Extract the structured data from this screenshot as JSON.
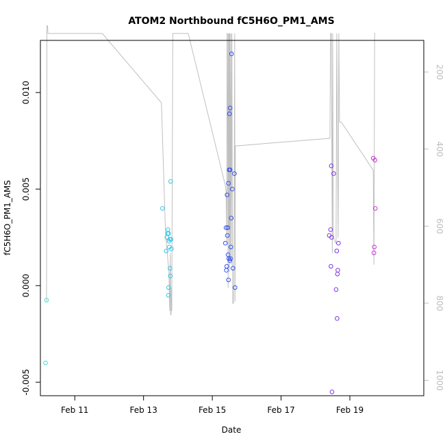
{
  "chart_data": {
    "type": "scatter",
    "title": "ATOM2 Northbound fC5H6O_PM1_AMS",
    "xlabel": "Date",
    "ylabel": "fC5H6O_PM1_AMS",
    "xlim": [
      10.0,
      21.15
    ],
    "ylim": [
      -0.0057,
      0.0127
    ],
    "x_ticks": [
      {
        "value": 11,
        "label": "Feb 11"
      },
      {
        "value": 13,
        "label": "Feb 13"
      },
      {
        "value": 15,
        "label": "Feb 15"
      },
      {
        "value": 17,
        "label": "Feb 17"
      },
      {
        "value": 19,
        "label": "Feb 19"
      }
    ],
    "y_ticks": [
      {
        "value": -0.005,
        "label": "-0.005"
      },
      {
        "value": 0.0,
        "label": "0.000"
      },
      {
        "value": 0.005,
        "label": "0.005"
      },
      {
        "value": 0.01,
        "label": "0.010"
      }
    ],
    "secondary_axis": {
      "label": "",
      "lim": [
        118,
        1040
      ],
      "color": "#bdbdbd",
      "ticks": [
        {
          "value": 200,
          "label": "200"
        },
        {
          "value": 400,
          "label": "400"
        },
        {
          "value": 600,
          "label": "600"
        },
        {
          "value": 800,
          "label": "800"
        },
        {
          "value": 1000,
          "label": "1000"
        }
      ]
    },
    "points": [
      {
        "x": 10.18,
        "y": -0.00075,
        "color": "#40e0d0"
      },
      {
        "x": 10.15,
        "y": -0.004,
        "color": "#40e0d0"
      },
      {
        "x": 13.55,
        "y": 0.004,
        "color": "#33c3e6"
      },
      {
        "x": 13.66,
        "y": 0.0018,
        "color": "#33c3e6"
      },
      {
        "x": 13.68,
        "y": 0.0025,
        "color": "#33c3e6"
      },
      {
        "x": 13.7,
        "y": 0.0027,
        "color": "#33c3e6"
      },
      {
        "x": 13.71,
        "y": 0.0029,
        "color": "#33c3e6"
      },
      {
        "x": 13.72,
        "y": -0.0005,
        "color": "#33c3e6"
      },
      {
        "x": 13.73,
        "y": 0.0027,
        "color": "#33c3e6"
      },
      {
        "x": 13.74,
        "y": 0.0023,
        "color": "#33c3e6"
      },
      {
        "x": 13.75,
        "y": 0.002,
        "color": "#33c3e6"
      },
      {
        "x": 13.76,
        "y": 0.0024,
        "color": "#33c3e6"
      },
      {
        "x": 13.77,
        "y": 0.0009,
        "color": "#33c3e6"
      },
      {
        "x": 13.78,
        "y": 0.0005,
        "color": "#33c3e6"
      },
      {
        "x": 13.79,
        "y": 0.0054,
        "color": "#33c3e6"
      },
      {
        "x": 13.8,
        "y": 0.0024,
        "color": "#33c3e6"
      },
      {
        "x": 13.81,
        "y": 0.0019,
        "color": "#33c3e6"
      },
      {
        "x": 13.73,
        "y": -0.0001,
        "color": "#33c3e6"
      },
      {
        "x": 15.38,
        "y": 0.0022,
        "color": "#3050ee"
      },
      {
        "x": 15.4,
        "y": 0.003,
        "color": "#3050ee"
      },
      {
        "x": 15.41,
        "y": 0.0008,
        "color": "#3050ee"
      },
      {
        "x": 15.42,
        "y": 0.001,
        "color": "#3050ee"
      },
      {
        "x": 15.43,
        "y": 0.0047,
        "color": "#3050ee"
      },
      {
        "x": 15.44,
        "y": 0.0026,
        "color": "#3050ee"
      },
      {
        "x": 15.45,
        "y": 0.003,
        "color": "#3050ee"
      },
      {
        "x": 15.46,
        "y": 0.0016,
        "color": "#3050ee"
      },
      {
        "x": 15.47,
        "y": 0.0053,
        "color": "#3050ee"
      },
      {
        "x": 15.47,
        "y": 0.0003,
        "color": "#3050ee"
      },
      {
        "x": 15.48,
        "y": 0.0014,
        "color": "#3050ee"
      },
      {
        "x": 15.49,
        "y": 0.006,
        "color": "#3050ee"
      },
      {
        "x": 15.5,
        "y": 0.0089,
        "color": "#3050ee"
      },
      {
        "x": 15.51,
        "y": 0.0013,
        "color": "#3050ee"
      },
      {
        "x": 15.52,
        "y": 0.006,
        "color": "#3050ee"
      },
      {
        "x": 15.52,
        "y": 0.0092,
        "color": "#3050ee"
      },
      {
        "x": 15.53,
        "y": 0.0014,
        "color": "#3050ee"
      },
      {
        "x": 15.54,
        "y": 0.002,
        "color": "#3050ee"
      },
      {
        "x": 15.55,
        "y": 0.0035,
        "color": "#3050ee"
      },
      {
        "x": 15.56,
        "y": 0.012,
        "color": "#3050ee"
      },
      {
        "x": 15.58,
        "y": 0.005,
        "color": "#3050ee"
      },
      {
        "x": 15.6,
        "y": 0.0009,
        "color": "#3050ee"
      },
      {
        "x": 15.64,
        "y": 0.0058,
        "color": "#3050ee"
      },
      {
        "x": 15.66,
        "y": -0.0001,
        "color": "#3050ee"
      },
      {
        "x": 18.4,
        "y": 0.0026,
        "color": "#7a34e6"
      },
      {
        "x": 18.44,
        "y": 0.0029,
        "color": "#7a34e6"
      },
      {
        "x": 18.45,
        "y": 0.001,
        "color": "#7a34e6"
      },
      {
        "x": 18.46,
        "y": 0.0062,
        "color": "#7a34e6"
      },
      {
        "x": 18.47,
        "y": 0.0025,
        "color": "#7a34e6"
      },
      {
        "x": 18.48,
        "y": -0.0055,
        "color": "#7a34e6"
      },
      {
        "x": 18.53,
        "y": 0.0058,
        "color": "#7a34e6"
      },
      {
        "x": 18.6,
        "y": -0.0002,
        "color": "#7a34e6"
      },
      {
        "x": 18.62,
        "y": 0.0018,
        "color": "#7a34e6"
      },
      {
        "x": 18.63,
        "y": -0.0017,
        "color": "#7a34e6"
      },
      {
        "x": 18.64,
        "y": 0.0006,
        "color": "#7a34e6"
      },
      {
        "x": 18.65,
        "y": 0.0008,
        "color": "#7a34e6"
      },
      {
        "x": 18.67,
        "y": 0.0022,
        "color": "#7a34e6"
      },
      {
        "x": 19.68,
        "y": 0.0066,
        "color": "#c534d6"
      },
      {
        "x": 19.7,
        "y": 0.0017,
        "color": "#c534d6"
      },
      {
        "x": 19.71,
        "y": 0.002,
        "color": "#c534d6"
      },
      {
        "x": 19.73,
        "y": 0.0065,
        "color": "#c534d6"
      },
      {
        "x": 19.74,
        "y": 0.004,
        "color": "#c534d6"
      }
    ],
    "line_series": {
      "name": "secondary",
      "color": "#bfbfbf",
      "x": [
        10.18,
        10.19,
        10.21,
        10.22,
        11.8,
        13.52,
        13.64,
        13.74,
        13.76,
        13.78,
        13.79,
        13.8,
        13.81,
        13.82,
        13.85,
        14.3,
        15.38,
        15.4,
        15.42,
        15.43,
        15.44,
        15.46,
        15.47,
        15.48,
        15.49,
        15.5,
        15.51,
        15.52,
        15.54,
        15.55,
        15.57,
        15.59,
        15.62,
        15.63,
        15.65,
        15.66,
        15.67,
        18.42,
        18.44,
        18.46,
        18.49,
        18.5,
        18.52,
        18.6,
        18.62,
        18.66,
        18.68,
        18.7,
        18.75,
        19.68,
        19.7,
        19.72,
        19.74
      ],
      "y": [
        795,
        80,
        80,
        100,
        100,
        280,
        620,
        720,
        820,
        670,
        830,
        830,
        760,
        820,
        100,
        100,
        495,
        510,
        640,
        100,
        100,
        760,
        100,
        610,
        100,
        720,
        100,
        670,
        100,
        700,
        100,
        800,
        800,
        660,
        100,
        795,
        392,
        372,
        100,
        100,
        670,
        100,
        630,
        645,
        100,
        630,
        100,
        330,
        330,
        455,
        700,
        100,
        100
      ]
    }
  }
}
